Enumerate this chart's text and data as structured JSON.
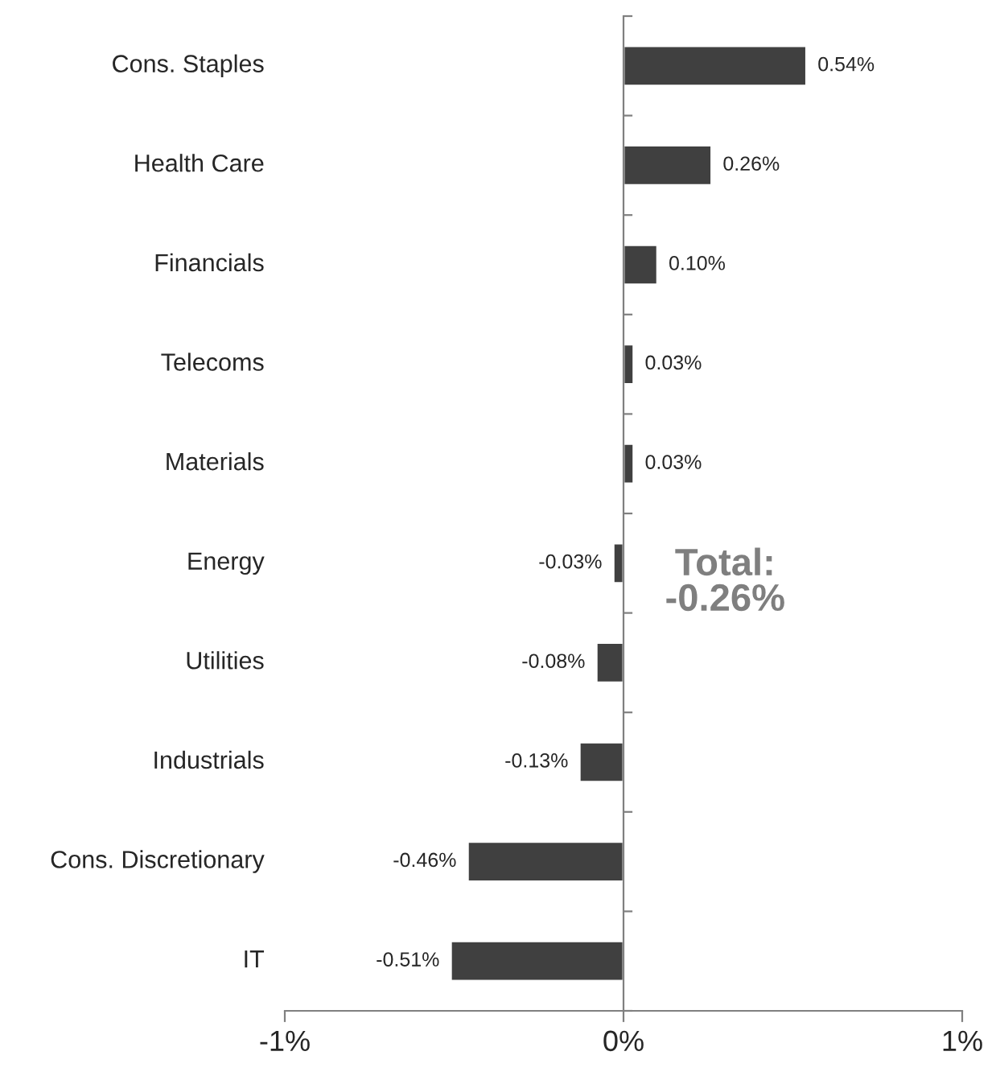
{
  "chart_data": {
    "type": "bar",
    "orientation": "horizontal",
    "categories": [
      "Cons. Staples",
      "Health Care",
      "Financials",
      "Telecoms",
      "Materials",
      "Energy",
      "Utilities",
      "Industrials",
      "Cons. Discretionary",
      "IT"
    ],
    "values": [
      0.54,
      0.26,
      0.1,
      0.03,
      0.03,
      -0.03,
      -0.08,
      -0.13,
      -0.46,
      -0.51
    ],
    "value_labels": [
      "0.54%",
      "0.26%",
      "0.10%",
      "0.03%",
      "0.03%",
      "-0.03%",
      "-0.08%",
      "-0.13%",
      "-0.46%",
      "-0.51%"
    ],
    "color": "#404040",
    "xlim": [
      -1,
      1
    ],
    "xticks": [
      {
        "value": -1,
        "label": "-1%"
      },
      {
        "value": 0,
        "label": "0%"
      },
      {
        "value": 1,
        "label": "1%"
      }
    ],
    "annotations": [
      "Total:\n-0.26%"
    ],
    "legend": false
  }
}
